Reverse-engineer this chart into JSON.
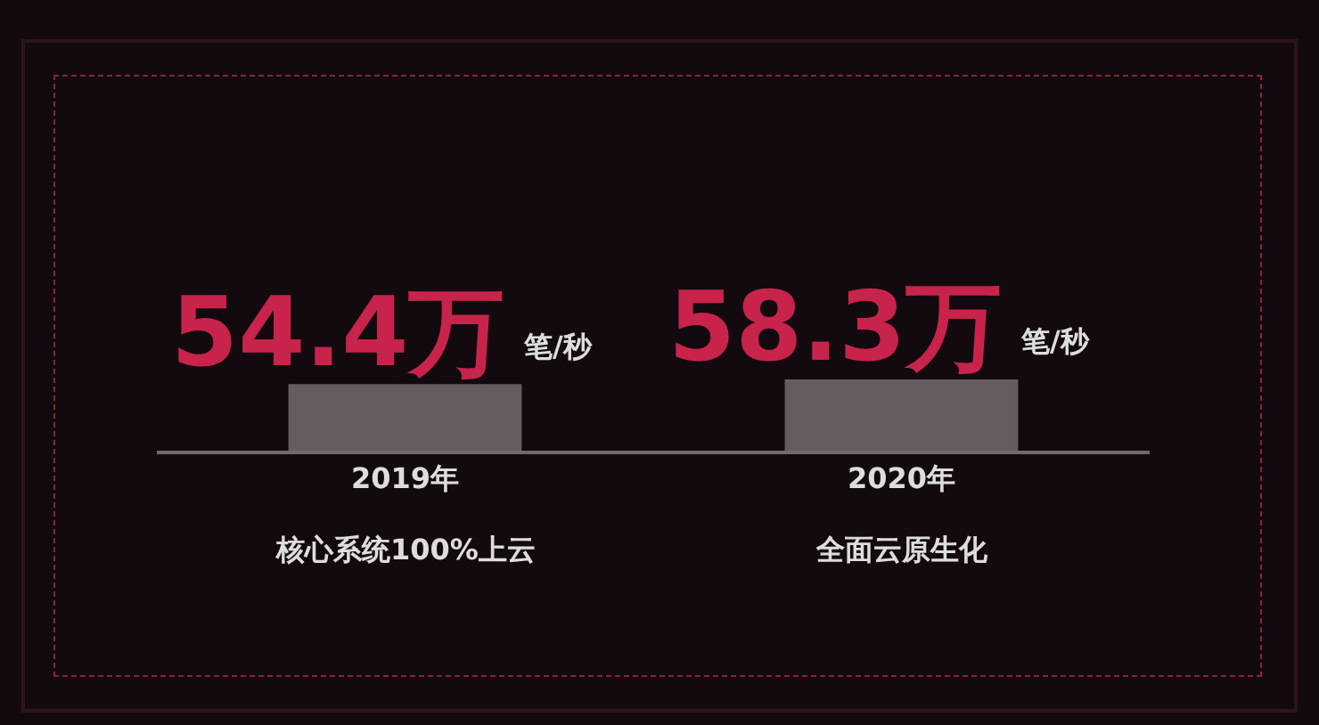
{
  "chart_data": {
    "type": "bar",
    "categories": [
      "2019年",
      "2020年"
    ],
    "values": [
      54.4,
      58.3
    ],
    "value_labels": [
      "54.4万",
      "58.3万"
    ],
    "color": "#645c5f",
    "annotations": [
      "笔/秒",
      "笔/秒",
      "核心系统100%上云",
      "全面云原生化"
    ]
  }
}
